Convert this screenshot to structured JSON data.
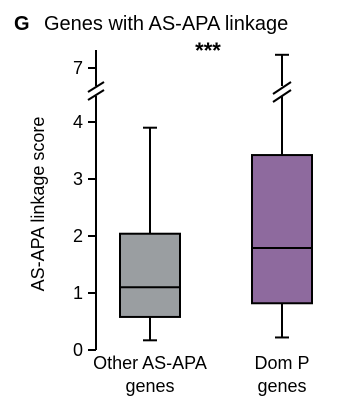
{
  "panel_letter": "G",
  "colors": {
    "axis": "#000000",
    "other_box": "#9a9ea1",
    "dom_box": "#8e6a9e"
  },
  "chart_data": {
    "type": "box",
    "title": "Genes with AS-APA linkage",
    "significance": "***",
    "ylabel": "AS-APA linkage score",
    "xlabel": "",
    "ylim": [
      0,
      4.4
    ],
    "y_break": {
      "from": 4.4,
      "to": 6.8
    },
    "y_ticks": [
      0,
      1,
      2,
      3,
      4,
      7
    ],
    "grid": false,
    "legend": "none",
    "categories": [
      {
        "line1": "Other AS-APA",
        "line2": "genes"
      },
      {
        "line1": "Dom P",
        "line2": "genes"
      }
    ],
    "series": [
      {
        "whisker_low": 0.17,
        "q1": 0.58,
        "median": 1.1,
        "q3": 2.04,
        "whisker_high": 3.9,
        "color": "#9a9ea1"
      },
      {
        "whisker_low": 0.22,
        "q1": 0.82,
        "median": 1.79,
        "q3": 3.42,
        "whisker_high": 7.6,
        "color": "#8e6a9e"
      }
    ]
  }
}
